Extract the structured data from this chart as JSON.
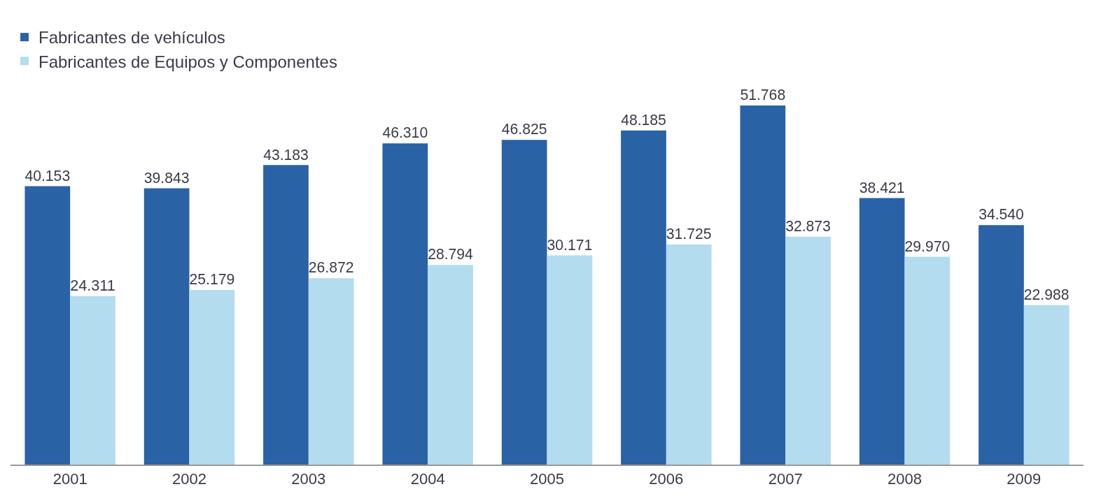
{
  "chart_data": {
    "type": "bar",
    "categories": [
      "2001",
      "2002",
      "2003",
      "2004",
      "2005",
      "2006",
      "2007",
      "2008",
      "2009"
    ],
    "series": [
      {
        "name": "Fabricantes de vehículos",
        "color": "#2a62a6",
        "values": [
          40153,
          39843,
          43183,
          46310,
          46825,
          48185,
          51768,
          38421,
          34540
        ],
        "value_labels": [
          "40.153",
          "39.843",
          "43.183",
          "46.310",
          "46.825",
          "48.185",
          "51.768",
          "38.421",
          "34.540"
        ]
      },
      {
        "name": "Fabricantes de Equipos y Componentes",
        "color": "#b3dcef",
        "values": [
          24311,
          25179,
          26872,
          28794,
          30171,
          31725,
          32873,
          29970,
          22988
        ],
        "value_labels": [
          "24.311",
          "25.179",
          "26.872",
          "28.794",
          "30.171",
          "31.725",
          "32.873",
          "29.970",
          "22.988"
        ]
      }
    ],
    "legend": "top left"
  }
}
